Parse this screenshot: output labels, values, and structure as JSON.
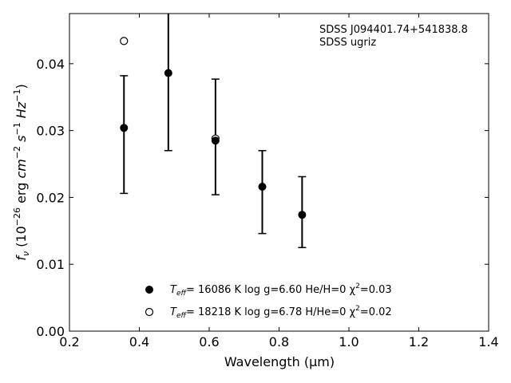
{
  "chart_data": {
    "type": "scatter",
    "xlabel": "Wavelength (μm)",
    "ylabel": {
      "main": "f",
      "sub": "ν",
      "rest": " (10",
      "exp1": "−26",
      "mid": " erg ",
      "cm": "cm",
      "exp2": "−2",
      "s": " s",
      "exp3": "−1",
      "hz": " Hz",
      "exp4": "−1",
      "close": ")"
    },
    "xlim": [
      0.2,
      1.4
    ],
    "ylim": [
      0.0,
      0.0475
    ],
    "xticks": [
      "0.2",
      "0.4",
      "0.6",
      "0.8",
      "1.0",
      "1.2",
      "1.4"
    ],
    "xtick_values": [
      0.2,
      0.4,
      0.6,
      0.8,
      1.0,
      1.2,
      1.4
    ],
    "yticks": [
      "0.00",
      "0.01",
      "0.02",
      "0.03",
      "0.04"
    ],
    "ytick_values": [
      0.0,
      0.01,
      0.02,
      0.03,
      0.04
    ],
    "grid": false,
    "legend_position": "bottom-center",
    "annotation": [
      "SDSS J094401.74+541838.8",
      "SDSS ugriz"
    ],
    "observed": {
      "x": [
        0.356,
        0.483,
        0.618,
        0.752,
        0.866
      ],
      "y": [
        0.0304,
        0.0386,
        0.0285,
        0.0216,
        0.0174
      ],
      "err_low": [
        0.0206,
        0.027,
        0.0204,
        0.0146,
        0.0125
      ],
      "err_high": [
        0.0382,
        0.05,
        0.0377,
        0.027,
        0.0231
      ]
    },
    "series": [
      {
        "name": "Teff= 16086 K  log g=6.60  He/H=0  χ²=0.03",
        "label_parts": {
          "t": "T",
          "sub": "eff",
          "rest": "= 16086 K  log g=6.60  He/H=0  χ",
          "sup": "2",
          "end": "=0.03"
        },
        "marker": "filled-circle",
        "x": [
          0.356,
          0.483,
          0.618,
          0.752,
          0.866
        ],
        "y": [
          0.0304,
          0.0386,
          0.0285,
          0.0216,
          0.0174
        ]
      },
      {
        "name": "Teff= 18218 K  log g=6.78  H/He=0  χ²=0.02",
        "label_parts": {
          "t": "T",
          "sub": "eff",
          "rest": "= 18218 K  log g=6.78  H/He=0  χ",
          "sup": "2",
          "end": "=0.02"
        },
        "marker": "open-circle",
        "x": [
          0.356,
          0.618
        ],
        "y": [
          0.0434,
          0.0288
        ]
      }
    ]
  }
}
